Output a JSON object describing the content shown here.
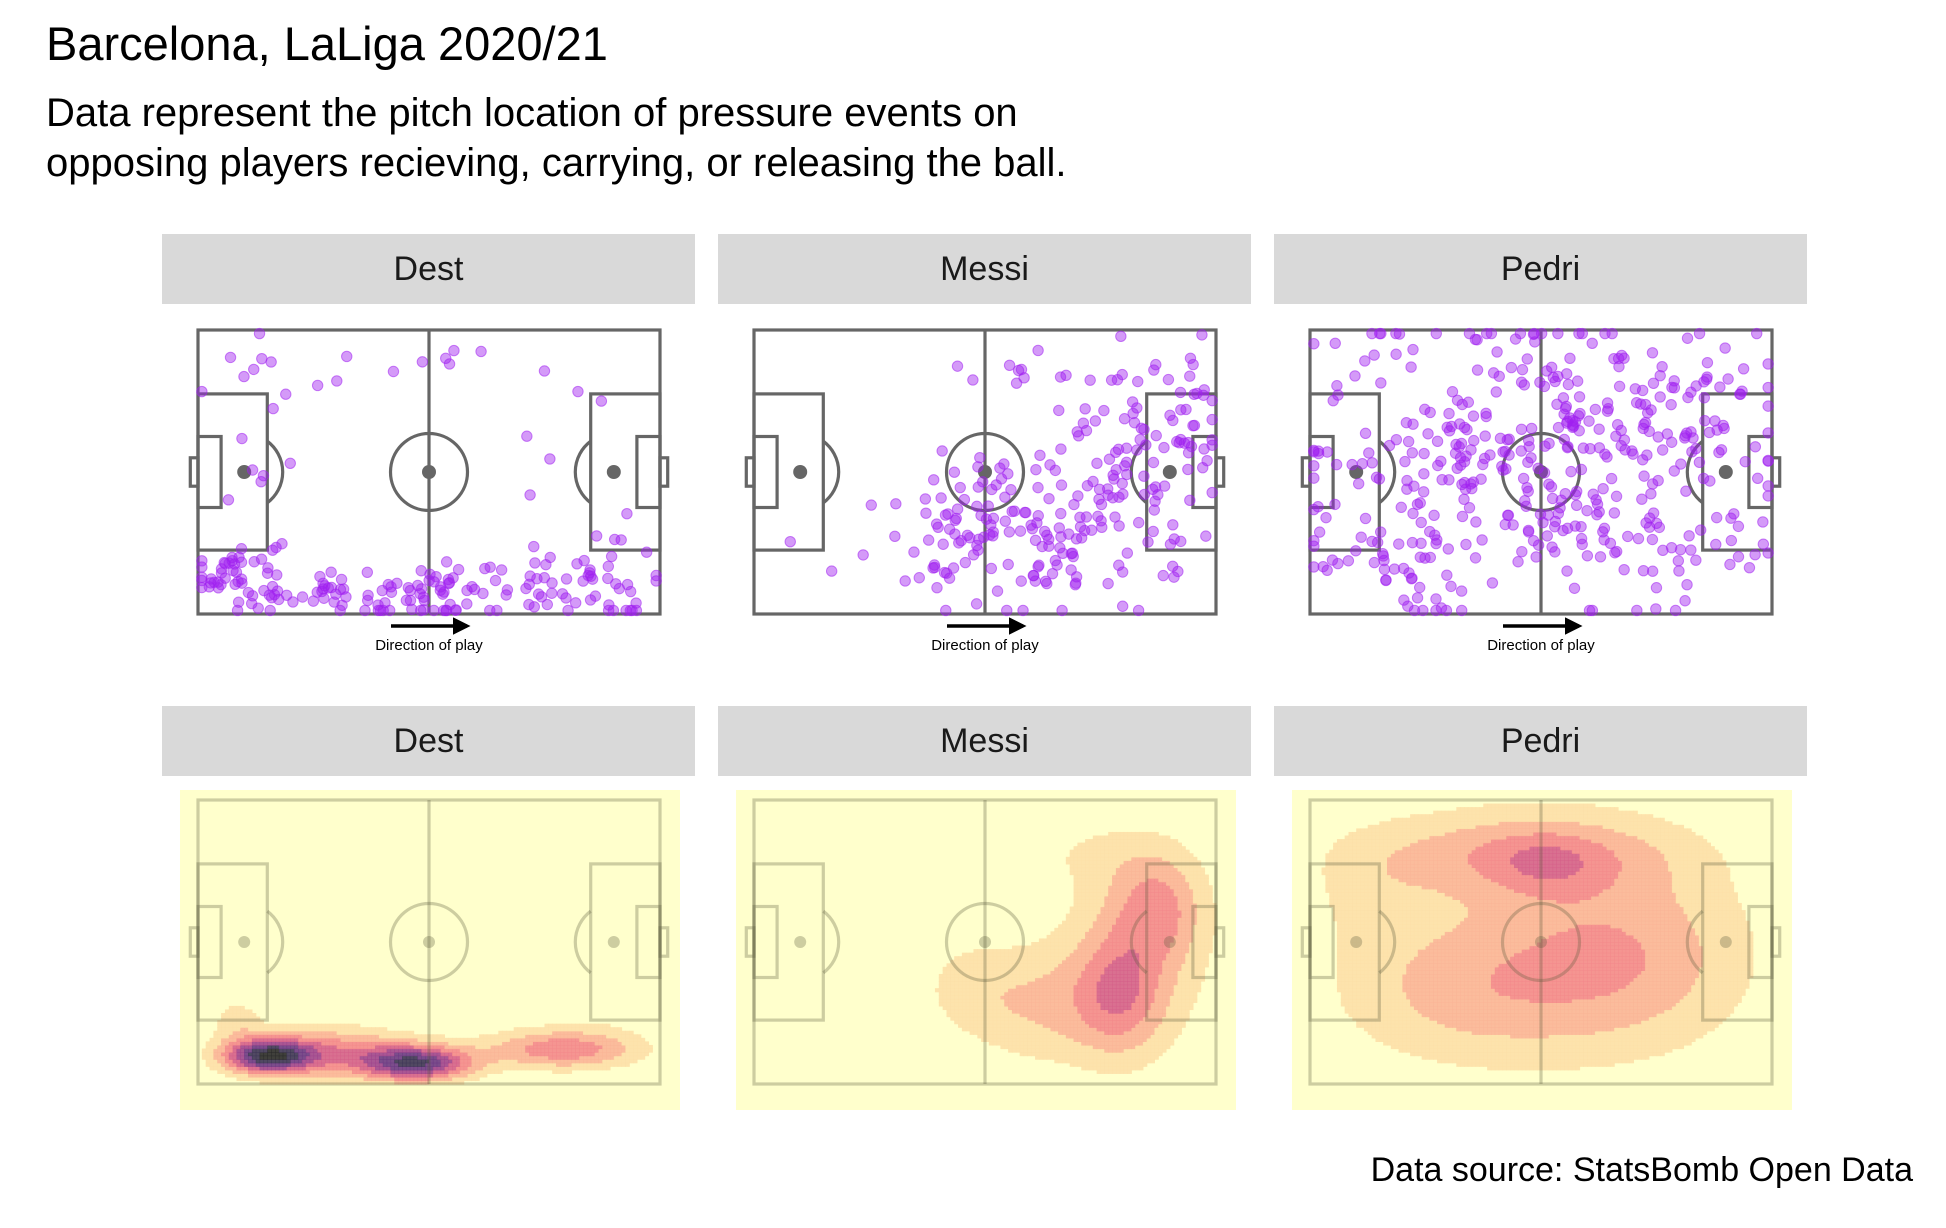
{
  "title": "Barcelona, LaLiga 2020/21",
  "subtitle": [
    "Data represent the pitch location of pressure events on",
    "opposing players recieving, carrying, or releasing the ball."
  ],
  "caption": "Data source: StatsBomb Open Data",
  "direction_label": "Direction of play",
  "colors": {
    "points": "#a020f0",
    "pitch_lines": "#666666",
    "density_background": "#ffffcc",
    "density_ramp": [
      "#ffffcc",
      "#fde0a8",
      "#fbb597",
      "#f48a8b",
      "#d5608a",
      "#a0458d",
      "#6d3a84",
      "#3e3557",
      "#2b2b2b"
    ]
  },
  "chart_data": [
    {
      "type": "scatter",
      "panel": "Dest",
      "x_range": [
        0,
        120
      ],
      "y_range": [
        0,
        80
      ],
      "clusters": [
        {
          "cx": 10,
          "cy": 12,
          "sx": 6,
          "sy": 5,
          "n": 45
        },
        {
          "cx": 35,
          "cy": 6,
          "sx": 12,
          "sy": 4,
          "n": 40
        },
        {
          "cx": 60,
          "cy": 6,
          "sx": 10,
          "sy": 4,
          "n": 45
        },
        {
          "cx": 90,
          "cy": 7,
          "sx": 12,
          "sy": 4,
          "n": 35
        },
        {
          "cx": 112,
          "cy": 12,
          "sx": 5,
          "sy": 7,
          "n": 20
        },
        {
          "cx": 50,
          "cy": 70,
          "sx": 30,
          "sy": 5,
          "n": 14
        },
        {
          "cx": 15,
          "cy": 40,
          "sx": 8,
          "sy": 15,
          "n": 10
        },
        {
          "cx": 95,
          "cy": 40,
          "sx": 14,
          "sy": 18,
          "n": 10
        }
      ]
    },
    {
      "type": "scatter",
      "panel": "Messi",
      "x_range": [
        0,
        120
      ],
      "y_range": [
        0,
        80
      ],
      "clusters": [
        {
          "cx": 95,
          "cy": 40,
          "sx": 14,
          "sy": 18,
          "n": 110
        },
        {
          "cx": 70,
          "cy": 22,
          "sx": 15,
          "sy": 12,
          "n": 75
        },
        {
          "cx": 55,
          "cy": 25,
          "sx": 12,
          "sy": 10,
          "n": 40
        },
        {
          "cx": 110,
          "cy": 55,
          "sx": 6,
          "sy": 10,
          "n": 20
        },
        {
          "cx": 70,
          "cy": 70,
          "sx": 15,
          "sy": 5,
          "n": 10
        },
        {
          "cx": 20,
          "cy": 15,
          "sx": 10,
          "sy": 5,
          "n": 3
        }
      ]
    },
    {
      "type": "scatter",
      "panel": "Pedri",
      "x_range": [
        0,
        120
      ],
      "y_range": [
        0,
        80
      ],
      "clusters": [
        {
          "cx": 60,
          "cy": 55,
          "sx": 30,
          "sy": 16,
          "n": 220
        },
        {
          "cx": 60,
          "cy": 25,
          "sx": 32,
          "sy": 16,
          "n": 160
        },
        {
          "cx": 20,
          "cy": 20,
          "sx": 10,
          "sy": 12,
          "n": 30
        },
        {
          "cx": 100,
          "cy": 45,
          "sx": 10,
          "sy": 20,
          "n": 40
        }
      ]
    },
    {
      "type": "heatmap",
      "panel": "Dest",
      "x_range": [
        0,
        120
      ],
      "y_range": [
        0,
        80
      ],
      "kernels": [
        {
          "cx": 18,
          "cy": 8,
          "sx": 8,
          "sy": 3.5,
          "w": 1.0
        },
        {
          "cx": 57,
          "cy": 6,
          "sx": 10,
          "sy": 3.5,
          "w": 0.95
        },
        {
          "cx": 95,
          "cy": 10,
          "sx": 14,
          "sy": 4,
          "w": 0.55
        },
        {
          "cx": 35,
          "cy": 9,
          "sx": 14,
          "sy": 5,
          "w": 0.5
        },
        {
          "cx": 10,
          "cy": 18,
          "sx": 5,
          "sy": 5,
          "w": 0.2
        },
        {
          "cx": 45,
          "cy": 72,
          "sx": 20,
          "sy": 2.5,
          "w": 0.06
        },
        {
          "cx": 105,
          "cy": 22,
          "sx": 8,
          "sy": 4,
          "w": 0.12
        }
      ]
    },
    {
      "type": "heatmap",
      "panel": "Messi",
      "x_range": [
        0,
        120
      ],
      "y_range": [
        0,
        80
      ],
      "kernels": [
        {
          "cx": 95,
          "cy": 25,
          "sx": 8,
          "sy": 12,
          "w": 0.6
        },
        {
          "cx": 105,
          "cy": 50,
          "sx": 8,
          "sy": 10,
          "w": 0.55
        },
        {
          "cx": 75,
          "cy": 22,
          "sx": 14,
          "sy": 12,
          "w": 0.45
        },
        {
          "cx": 100,
          "cy": 38,
          "sx": 14,
          "sy": 20,
          "w": 0.45
        },
        {
          "cx": 55,
          "cy": 28,
          "sx": 10,
          "sy": 10,
          "w": 0.25
        },
        {
          "cx": 88,
          "cy": 65,
          "sx": 15,
          "sy": 7,
          "w": 0.18
        }
      ]
    },
    {
      "type": "heatmap",
      "panel": "Pedri",
      "x_range": [
        0,
        120
      ],
      "y_range": [
        0,
        80
      ],
      "kernels": [
        {
          "cx": 55,
          "cy": 65,
          "sx": 28,
          "sy": 8,
          "w": 0.5
        },
        {
          "cx": 62,
          "cy": 62,
          "sx": 10,
          "sy": 6,
          "w": 0.25
        },
        {
          "cx": 85,
          "cy": 35,
          "sx": 22,
          "sy": 18,
          "w": 0.45
        },
        {
          "cx": 40,
          "cy": 25,
          "sx": 25,
          "sy": 14,
          "w": 0.4
        },
        {
          "cx": 15,
          "cy": 55,
          "sx": 12,
          "sy": 12,
          "w": 0.18
        },
        {
          "cx": 60,
          "cy": 45,
          "sx": 30,
          "sy": 25,
          "w": 0.3
        }
      ]
    }
  ]
}
